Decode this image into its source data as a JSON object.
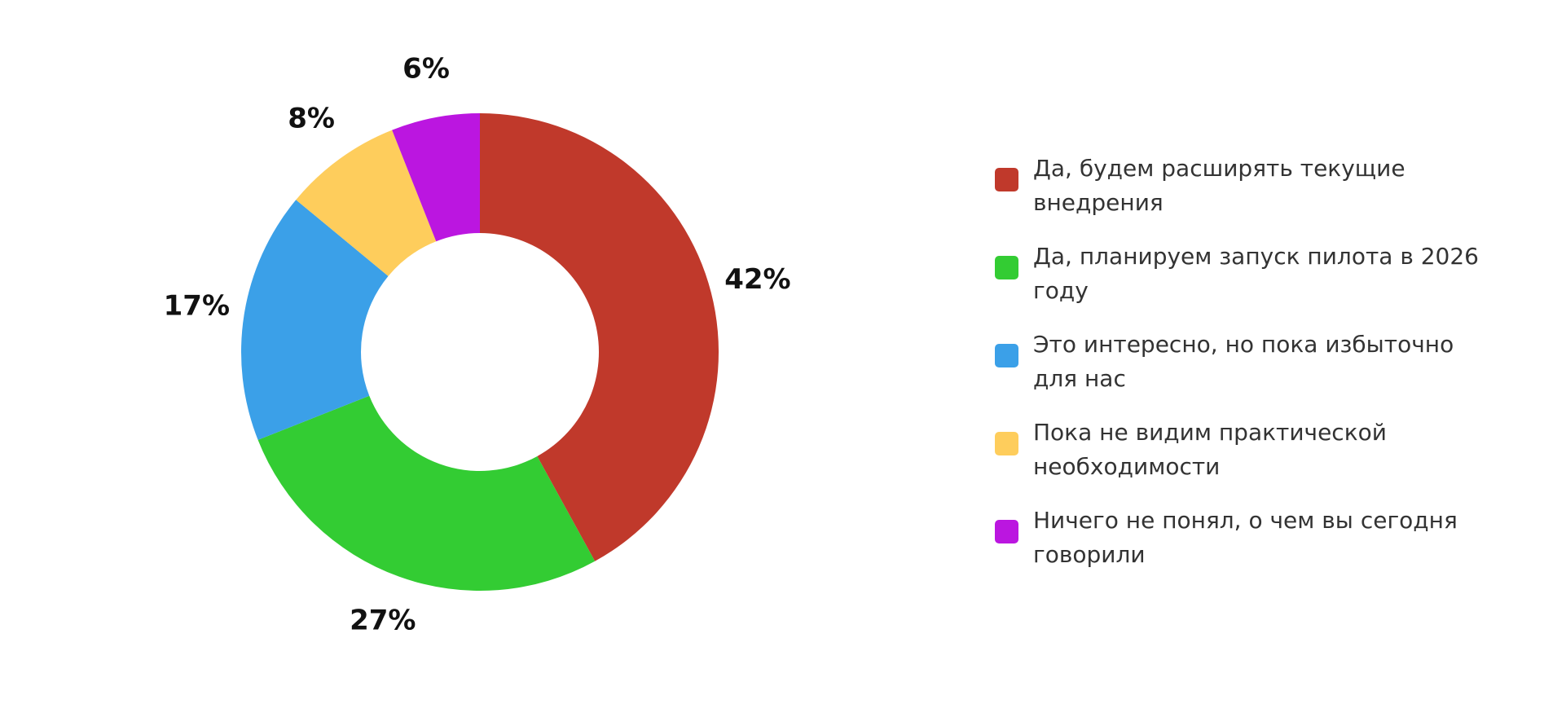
{
  "chart_data": {
    "type": "donut",
    "categories": [
      "Да, будем расширять текущие внедрения",
      "Да, планируем запуск пилота в 2026 году",
      "Это интересно, но пока избыточно для нас",
      "Пока не видим практической необходимости",
      "Ничего не понял, о чем вы сегодня говорили"
    ],
    "values": [
      42,
      27,
      17,
      8,
      6
    ],
    "value_labels": [
      "42%",
      "27%",
      "17%",
      "8%",
      "6%"
    ],
    "colors": [
      "#c0392b",
      "#33cc33",
      "#3ba0e8",
      "#fecd5c",
      "#bb16e0"
    ],
    "legend": "right"
  }
}
